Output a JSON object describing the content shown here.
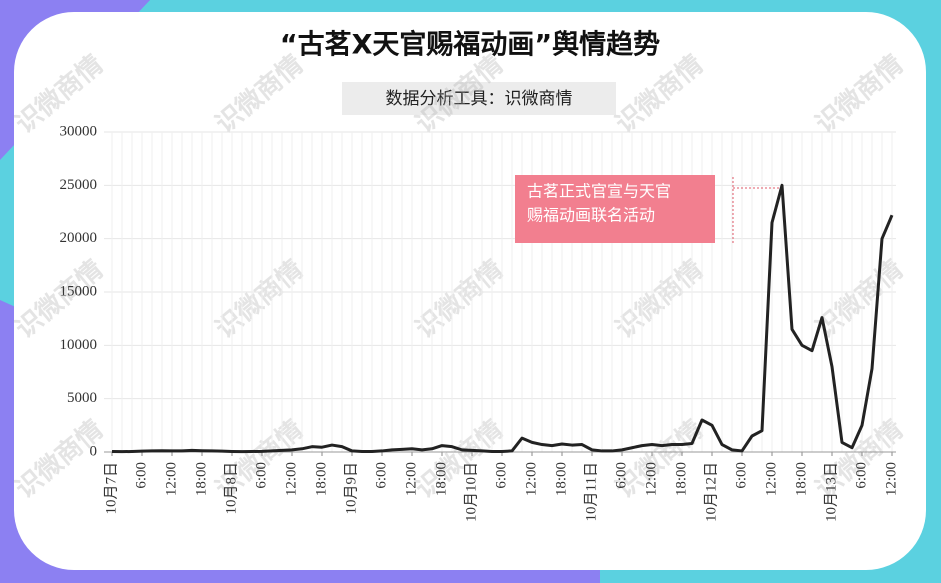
{
  "chart_data": {
    "type": "line",
    "title": "“古茗X天官赐福动画”舆情趋势",
    "subtitle": "数据分析工具：识微商情",
    "watermark": "识微商情",
    "annotation": [
      "古茗正式官宣与天官",
      "赐福动画联名活动"
    ],
    "annotation_color": "#f27f8f",
    "color": "#222222",
    "grid": true,
    "ylim": [
      0,
      30000
    ],
    "yticks": [
      0,
      5000,
      10000,
      15000,
      20000,
      25000,
      30000
    ],
    "categories": [
      "10月7日",
      null,
      null,
      "6:00",
      null,
      null,
      "12:00",
      null,
      null,
      "18:00",
      null,
      null,
      "10月8日",
      null,
      null,
      "6:00",
      null,
      null,
      "12:00",
      null,
      null,
      "18:00",
      null,
      null,
      "10月9日",
      null,
      null,
      "6:00",
      null,
      null,
      "12:00",
      null,
      null,
      "18:00",
      null,
      null,
      "10月10日",
      null,
      null,
      "6:00",
      null,
      null,
      "12:00",
      null,
      null,
      "18:00",
      null,
      null,
      "10月11日",
      null,
      null,
      "6:00",
      null,
      null,
      "12:00",
      null,
      null,
      "18:00",
      null,
      null,
      "10月12日",
      null,
      null,
      "6:00",
      null,
      null,
      "12:00",
      null,
      null,
      "18:00",
      null,
      null,
      "10月13日",
      null,
      null,
      "6:00",
      null,
      null,
      "12:00"
    ],
    "values": [
      50,
      30,
      50,
      80,
      100,
      120,
      100,
      100,
      150,
      120,
      100,
      80,
      50,
      40,
      50,
      60,
      100,
      150,
      200,
      300,
      500,
      450,
      650,
      500,
      100,
      50,
      50,
      100,
      200,
      250,
      300,
      200,
      300,
      600,
      500,
      200,
      150,
      100,
      50,
      50,
      100,
      1300,
      900,
      700,
      600,
      750,
      650,
      700,
      200,
      100,
      100,
      200,
      400,
      600,
      700,
      600,
      700,
      700,
      800,
      3000,
      2500,
      700,
      200,
      100,
      1500,
      2000,
      21500,
      25000,
      11500,
      10000,
      9500,
      12600,
      8000,
      900,
      400,
      2500,
      7800,
      20000,
      22200
    ]
  }
}
